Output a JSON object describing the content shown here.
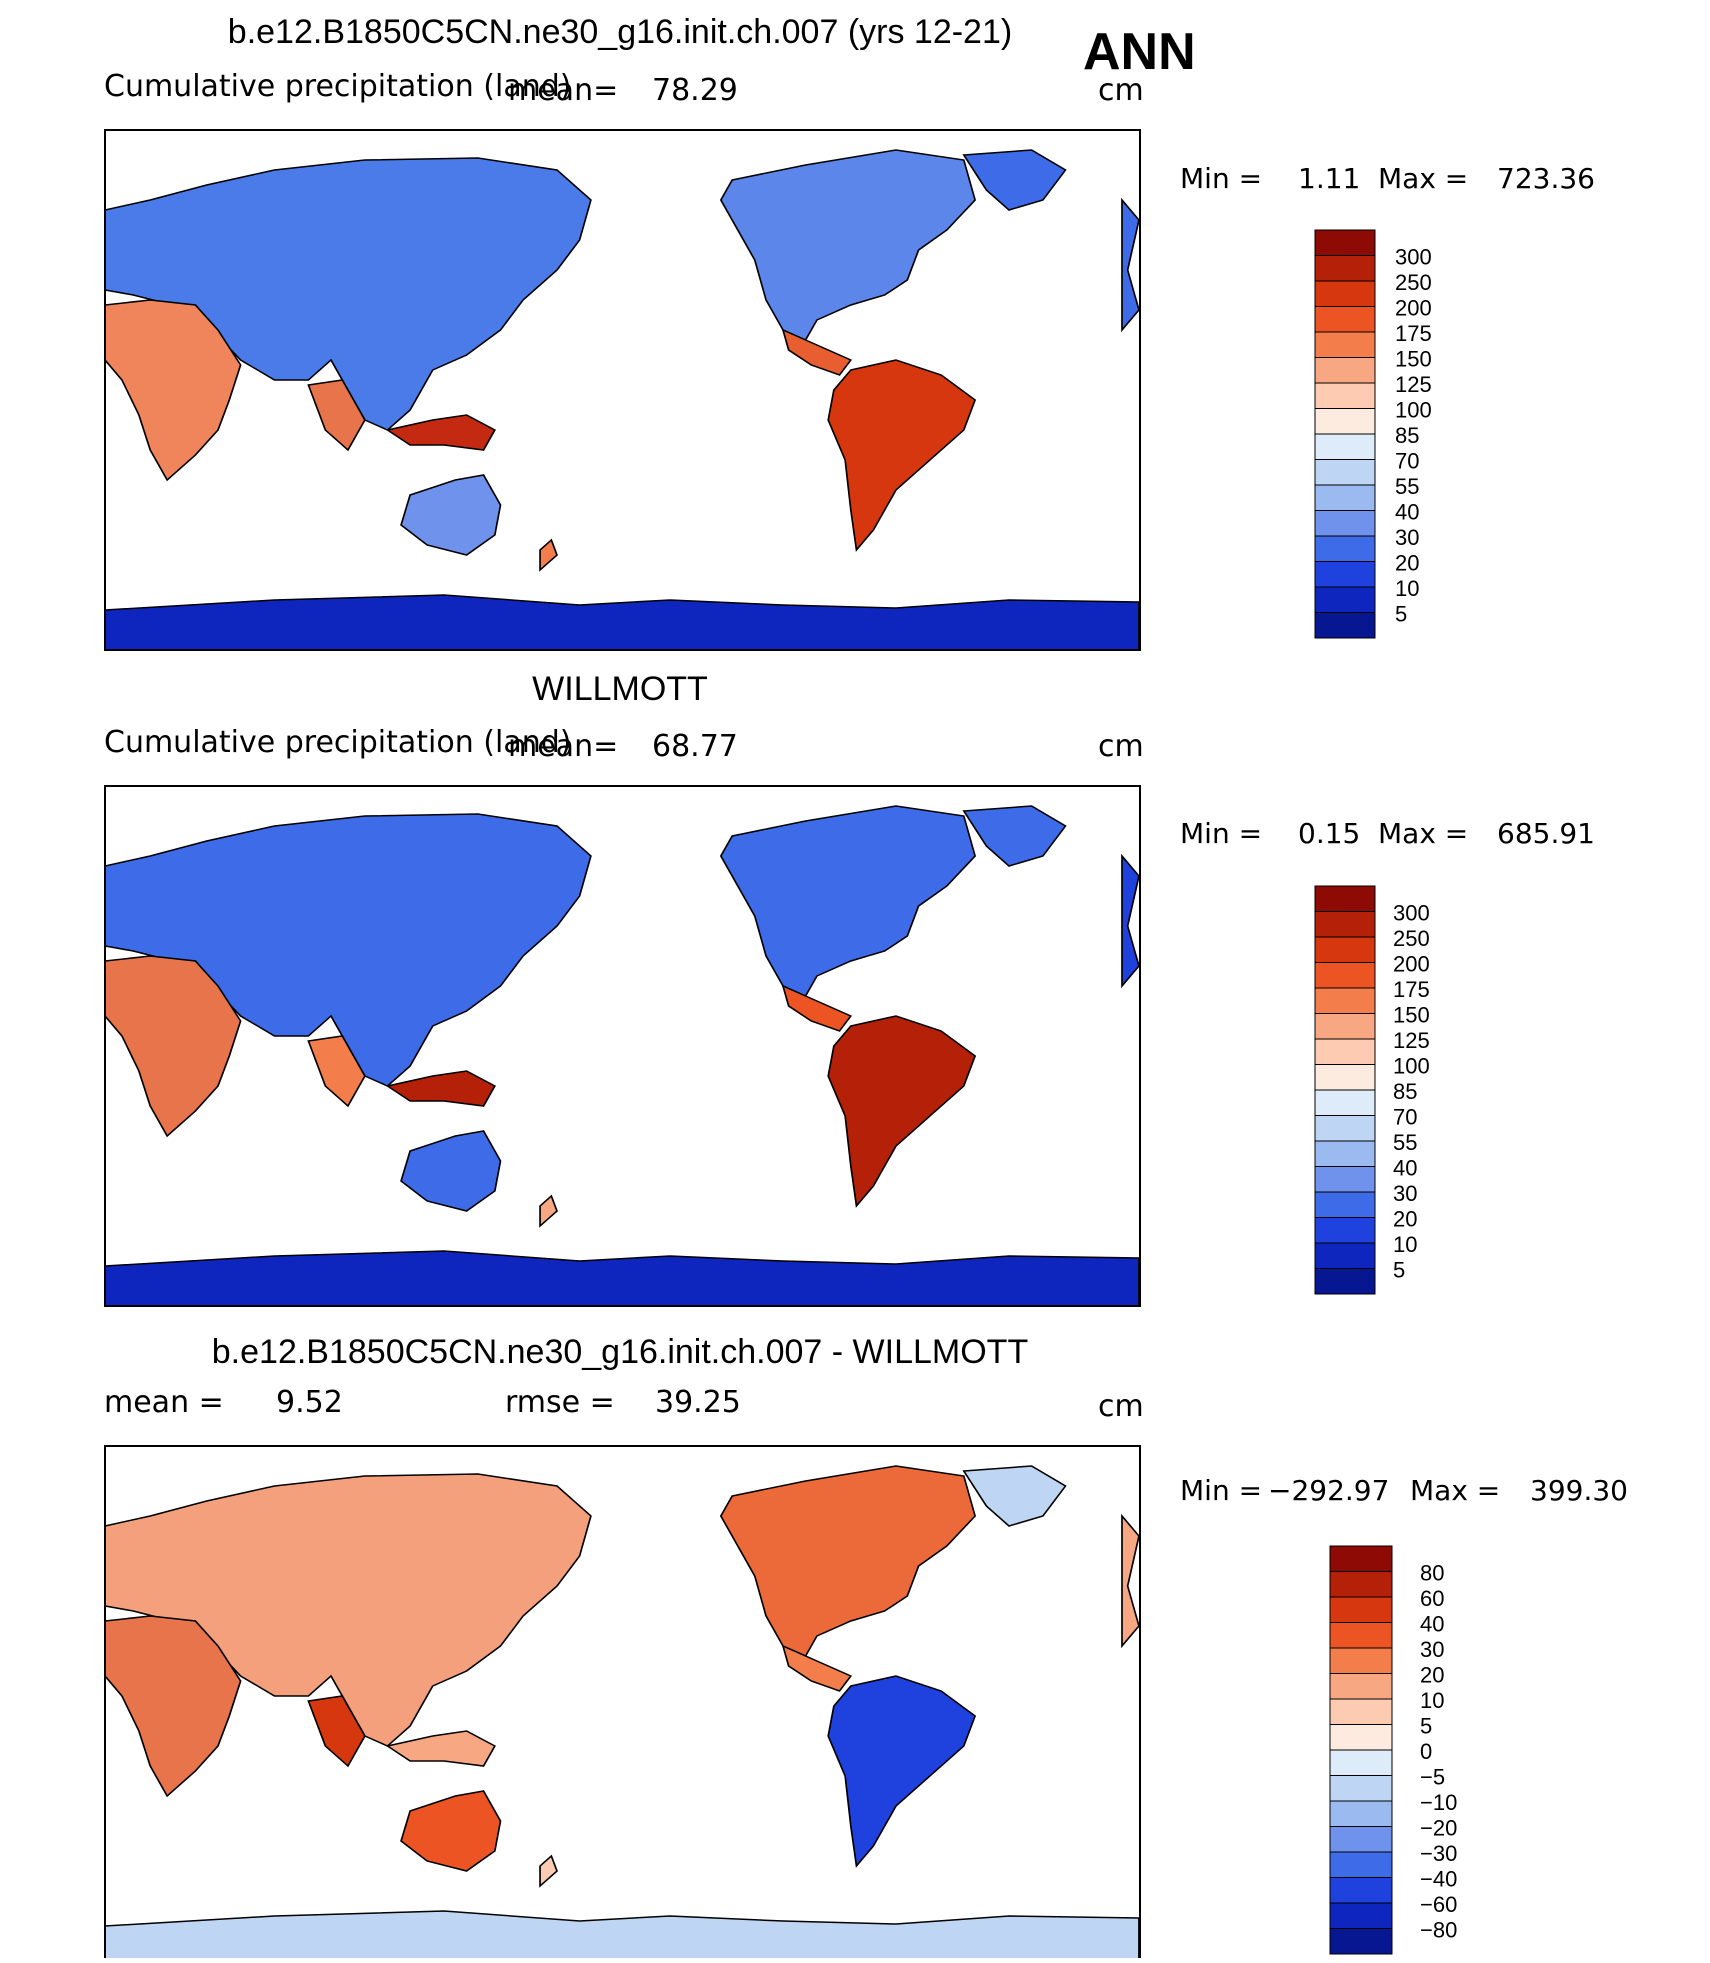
{
  "season": "ANN",
  "panels": [
    {
      "title": "b.e12.B1850C5CN.ne30_g16.init.ch.007 (yrs 12-21)",
      "variable": "Cumulative precipitation (land)",
      "mean_label": "mean=",
      "mean_value": "78.29",
      "units": "cm",
      "min_label": "Min =",
      "min_value": "1.11",
      "max_label": "Max =",
      "max_value": "723.36",
      "colorbar_labels": [
        "300",
        "250",
        "200",
        "175",
        "150",
        "125",
        "100",
        "85",
        "70",
        "55",
        "40",
        "30",
        "20",
        "10",
        "5"
      ],
      "colorbar_colors": [
        "#8e0a04",
        "#b52008",
        "#d6370e",
        "#ec5523",
        "#f47e4b",
        "#f7a782",
        "#fccbb1",
        "#fdebdf",
        "#deebf9",
        "#bed5f3",
        "#9bbaf0",
        "#6f93ec",
        "#3e6ce9",
        "#1f42df",
        "#0f26be",
        "#061791"
      ]
    },
    {
      "title": "WILLMOTT",
      "variable": "Cumulative precipitation (land)",
      "mean_label": "mean=",
      "mean_value": "68.77",
      "units": "cm",
      "min_label": "Min =",
      "min_value": "0.15",
      "max_label": "Max =",
      "max_value": "685.91",
      "colorbar_labels": [
        "300",
        "250",
        "200",
        "175",
        "150",
        "125",
        "100",
        "85",
        "70",
        "55",
        "40",
        "30",
        "20",
        "10",
        "5"
      ],
      "colorbar_colors": [
        "#8e0a04",
        "#b52008",
        "#d6370e",
        "#ec5523",
        "#f47e4b",
        "#f7a782",
        "#fccbb1",
        "#fdebdf",
        "#deebf9",
        "#bed5f3",
        "#9bbaf0",
        "#6f93ec",
        "#3e6ce9",
        "#1f42df",
        "#0f26be",
        "#061791"
      ]
    },
    {
      "title": "b.e12.B1850C5CN.ne30_g16.init.ch.007 - WILLMOTT",
      "mean_label": "mean =",
      "mean_value": "9.52",
      "rmse_label": "rmse =",
      "rmse_value": "39.25",
      "units": "cm",
      "min_label": "Min =",
      "min_value": "−292.97",
      "max_label": "Max =",
      "max_value": "399.30",
      "colorbar_labels": [
        "80",
        "60",
        "40",
        "30",
        "20",
        "10",
        "5",
        "0",
        "−5",
        "−10",
        "−20",
        "−30",
        "−40",
        "−60",
        "−80"
      ],
      "colorbar_colors": [
        "#8e0a04",
        "#b52008",
        "#d6370e",
        "#ec5523",
        "#f47e4b",
        "#f7a782",
        "#fccbb1",
        "#fdebdf",
        "#deebf9",
        "#bed5f3",
        "#9bbaf0",
        "#6f93ec",
        "#3e6ce9",
        "#1f42df",
        "#0f26be",
        "#061791"
      ]
    }
  ]
}
